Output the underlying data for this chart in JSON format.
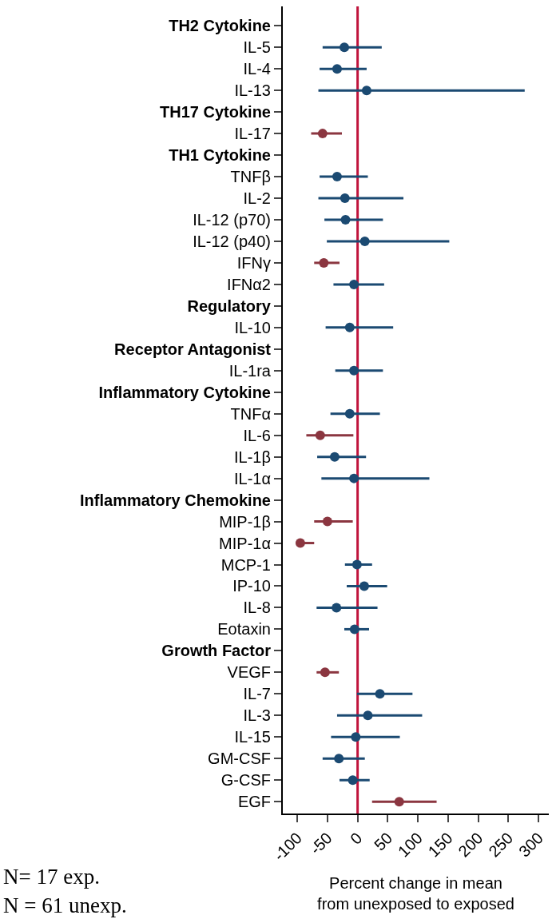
{
  "chart_data": {
    "type": "scatter",
    "orientation": "horizontal",
    "marker": "circle",
    "grid": false,
    "xlabel": "Percent change in mean\nfrom unexposed to exposed",
    "categories": [
      "TH2 Cytokine",
      "IL-5",
      "IL-4",
      "IL-13",
      "TH17 Cytokine",
      "IL-17",
      "TH1 Cytokine",
      "TNFβ",
      "IL-2",
      "IL-12 (p70)",
      "IL-12 (p40)",
      "IFNγ",
      "IFNα2",
      "Regulatory",
      "IL-10",
      "Receptor Antagonist",
      "IL-1ra",
      "Inflammatory Cytokine",
      "TNFα",
      "IL-6",
      "IL-1β",
      "IL-1α",
      "Inflammatory Chemokine",
      "MIP-1β",
      "MIP-1α",
      "MCP-1",
      "IP-10",
      "IL-8",
      "Eotaxin",
      "Growth Factor",
      "VEGF",
      "IL-7",
      "IL-3",
      "IL-15",
      "GM-CSF",
      "G-CSF",
      "EGF"
    ],
    "xlim": [
      -124,
      317
    ],
    "xticks": [
      -100,
      -50,
      0,
      50,
      100,
      150,
      200,
      250,
      300
    ],
    "series": [
      {
        "color": "#1b4a72",
        "values": [
          null,
          -22,
          -34,
          15,
          null,
          null,
          null,
          -34,
          -21,
          -20,
          12,
          null,
          -6,
          null,
          -13,
          null,
          -6,
          null,
          -13,
          null,
          -38,
          -6,
          null,
          null,
          null,
          -1,
          11,
          -35,
          -5,
          null,
          null,
          37,
          17,
          -3,
          -31,
          -8,
          null
        ],
        "errors": [
          null,
          [
            -58,
            40
          ],
          [
            -63,
            15
          ],
          [
            -65,
            277
          ],
          null,
          null,
          null,
          [
            -63,
            17
          ],
          [
            -65,
            76
          ],
          [
            -55,
            42
          ],
          [
            -51,
            152
          ],
          null,
          [
            -40,
            44
          ],
          null,
          [
            -53,
            59
          ],
          null,
          [
            -37,
            42
          ],
          null,
          [
            -45,
            37
          ],
          null,
          [
            -67,
            14
          ],
          [
            -60,
            119
          ],
          null,
          null,
          null,
          [
            -21,
            24
          ],
          [
            -18,
            49
          ],
          [
            -68,
            33
          ],
          [
            -22,
            19
          ],
          null,
          null,
          [
            -1,
            91
          ],
          [
            -34,
            107
          ],
          [
            -44,
            70
          ],
          [
            -58,
            12
          ],
          [
            -30,
            20
          ],
          null
        ]
      },
      {
        "color": "#8b3640",
        "values": [
          null,
          null,
          null,
          null,
          null,
          -58,
          null,
          null,
          null,
          null,
          null,
          -56,
          null,
          null,
          null,
          null,
          null,
          null,
          null,
          -62,
          null,
          null,
          null,
          -50,
          -95,
          null,
          null,
          null,
          null,
          null,
          -54,
          null,
          null,
          null,
          null,
          null,
          69
        ],
        "errors": [
          null,
          null,
          null,
          null,
          null,
          [
            -77,
            -26
          ],
          null,
          null,
          null,
          null,
          null,
          [
            -72,
            -30
          ],
          null,
          null,
          null,
          null,
          null,
          null,
          null,
          [
            -85,
            -7
          ],
          null,
          null,
          null,
          [
            -72,
            -8
          ],
          [
            -98,
            -72
          ],
          null,
          null,
          null,
          null,
          null,
          [
            -68,
            -31
          ],
          null,
          null,
          null,
          null,
          null,
          [
            24,
            131
          ]
        ]
      }
    ],
    "ref_lines": [
      {
        "axis": "x",
        "value": 0,
        "color": "#c0143c"
      }
    ],
    "annotations": [
      "N= 17 exp.",
      "N = 61 unexp."
    ]
  }
}
